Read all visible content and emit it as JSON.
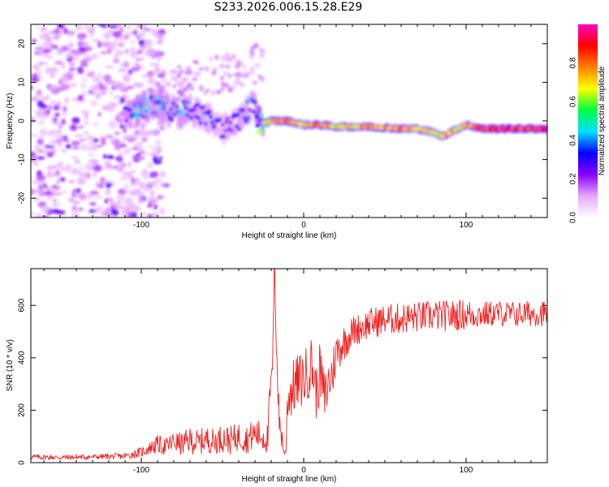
{
  "title": "S233.2026.006.15.28.E29",
  "chart_data": [
    {
      "type": "heatmap",
      "name": "spectrogram",
      "xlabel": "Height of straight line (km)",
      "ylabel": "Frequency (Hz)",
      "xlim": [
        -168,
        150
      ],
      "ylim": [
        -25,
        25
      ],
      "xticks": [
        -100,
        0,
        100
      ],
      "xtick_labels": [
        "-100",
        "0",
        "100"
      ],
      "yticks": [
        -20,
        -10,
        0,
        10,
        20
      ],
      "ytick_labels": [
        "-20",
        "-10",
        "0",
        "10",
        "20"
      ],
      "colorbar": {
        "label": "Normalized spectral amplitude",
        "range": [
          0,
          1
        ],
        "ticks": [
          0.0,
          0.2,
          0.4,
          0.6,
          0.8
        ],
        "tick_labels": [
          "0.0",
          "0.2",
          "0.4",
          "0.6",
          "0.8"
        ],
        "colors": [
          "#ffffff",
          "#e6a8ff",
          "#8a00ff",
          "#0000ff",
          "#00e0ff",
          "#00ff40",
          "#ffff00",
          "#ff8000",
          "#ff0000",
          "#ff00c0"
        ]
      },
      "ridge": {
        "x": [
          -110,
          -100,
          -90,
          -80,
          -70,
          -60,
          -50,
          -40,
          -30,
          -28,
          -20,
          -10,
          0,
          10,
          20,
          40,
          60,
          70,
          80,
          85,
          90,
          95,
          100,
          110,
          120,
          130,
          140,
          150
        ],
        "y": [
          1,
          3,
          5,
          2,
          3,
          1,
          -2,
          0,
          5,
          -1,
          0,
          0,
          -1,
          -1,
          -1.5,
          -1.5,
          -2,
          -2,
          -3,
          -4,
          -3,
          -2,
          -1,
          -2,
          -2,
          -2,
          -2,
          -2
        ],
        "amplitude": [
          0.35,
          0.45,
          0.4,
          0.4,
          0.35,
          0.35,
          0.3,
          0.35,
          0.35,
          0.55,
          0.75,
          0.8,
          0.7,
          0.85,
          0.7,
          0.75,
          0.8,
          0.75,
          0.7,
          0.7,
          0.75,
          0.7,
          0.75,
          0.85,
          0.9,
          0.9,
          0.9,
          0.9
        ]
      },
      "noise_region_x": [
        -168,
        -95
      ],
      "noise_amplitude": 0.15
    },
    {
      "type": "line",
      "name": "snr",
      "xlabel": "Height of straight line (km)",
      "ylabel": "SNR (10 * v/v)",
      "xlim": [
        -168,
        150
      ],
      "ylim": [
        0,
        740
      ],
      "xticks": [
        -100,
        0,
        100
      ],
      "xtick_labels": [
        "-100",
        "0",
        "100"
      ],
      "yticks": [
        0,
        200,
        400,
        600
      ],
      "ytick_labels": [
        "0",
        "200",
        "400",
        "600"
      ],
      "color": "#ee2222",
      "series": [
        {
          "name": "SNR",
          "x": [
            -168,
            -150,
            -130,
            -110,
            -100,
            -95,
            -90,
            -85,
            -80,
            -75,
            -70,
            -65,
            -60,
            -55,
            -50,
            -45,
            -40,
            -35,
            -30,
            -25,
            -22,
            -21,
            -20,
            -19,
            -18,
            -17,
            -16,
            -15,
            -14,
            -13,
            -12,
            -11,
            -10,
            -5,
            0,
            2,
            5,
            8,
            10,
            13,
            15,
            18,
            20,
            25,
            30,
            40,
            50,
            60,
            70,
            80,
            90,
            100,
            110,
            120,
            130,
            140,
            150
          ],
          "y": [
            22,
            20,
            22,
            25,
            40,
            55,
            70,
            60,
            80,
            70,
            85,
            75,
            90,
            80,
            95,
            85,
            100,
            90,
            110,
            100,
            90,
            250,
            300,
            400,
            740,
            500,
            300,
            150,
            120,
            80,
            40,
            30,
            250,
            300,
            320,
            340,
            380,
            260,
            350,
            240,
            300,
            350,
            420,
            460,
            500,
            530,
            545,
            550,
            555,
            560,
            560,
            565,
            565,
            570,
            565,
            570,
            570
          ],
          "spread": [
            10,
            10,
            10,
            12,
            20,
            25,
            35,
            35,
            40,
            45,
            50,
            50,
            50,
            50,
            55,
            55,
            55,
            55,
            60,
            60,
            60,
            60,
            60,
            60,
            0,
            60,
            60,
            60,
            60,
            40,
            20,
            20,
            100,
            110,
            110,
            110,
            110,
            110,
            110,
            100,
            100,
            100,
            80,
            70,
            60,
            60,
            60,
            60,
            60,
            60,
            60,
            60,
            50,
            50,
            50,
            50,
            50
          ]
        }
      ]
    }
  ]
}
